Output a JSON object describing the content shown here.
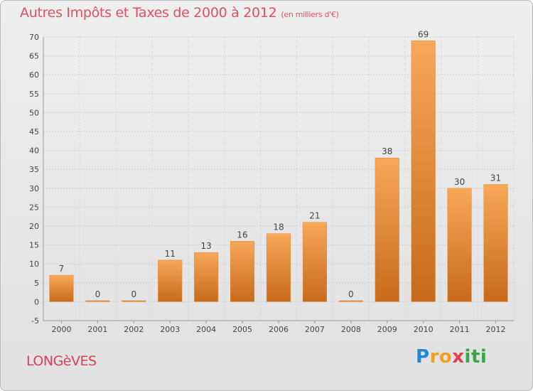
{
  "chart_data": {
    "type": "bar",
    "title": "Autres Impôts et Taxes de 2000 à 2012",
    "subtitle": "(en milliers d'€)",
    "categories": [
      "2000",
      "2001",
      "2002",
      "2003",
      "2004",
      "2005",
      "2006",
      "2007",
      "2008",
      "2009",
      "2010",
      "2011",
      "2012"
    ],
    "values": [
      7,
      0,
      0,
      11,
      13,
      16,
      18,
      21,
      0,
      38,
      69,
      30,
      31
    ],
    "ylim": [
      -5,
      70
    ],
    "yticks": [
      -5,
      0,
      5,
      10,
      15,
      20,
      25,
      30,
      35,
      40,
      45,
      50,
      55,
      60,
      65,
      70
    ],
    "grid": true,
    "bar_color": "#f0913a",
    "label_color": "#444444"
  },
  "footer": {
    "commune": "LONGèVES",
    "logo_parts": [
      "P",
      "ro",
      "x",
      "iti"
    ]
  }
}
